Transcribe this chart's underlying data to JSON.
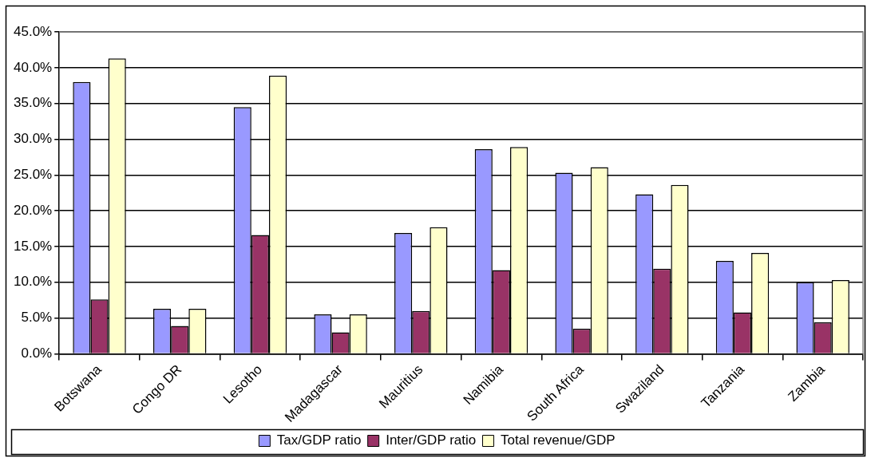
{
  "chart_data": {
    "type": "bar",
    "categories": [
      "Botswana",
      "Congo DR",
      "Lesotho",
      "Madagascar",
      "Mauritius",
      "Namibia",
      "South Africa",
      "Swaziland",
      "Tanzania",
      "Zambia"
    ],
    "series": [
      {
        "name": "Tax/GDP ratio",
        "color": "#9999ff",
        "values": [
          38.0,
          6.3,
          34.5,
          5.5,
          16.9,
          28.6,
          25.3,
          22.3,
          13.0,
          10.0
        ]
      },
      {
        "name": "Inter/GDP ratio",
        "color": "#993366",
        "values": [
          7.6,
          3.9,
          16.6,
          3.0,
          6.0,
          11.7,
          3.5,
          11.9,
          5.8,
          4.4
        ]
      },
      {
        "name": "Total revenue/GDP",
        "color": "#ffffcc",
        "values": [
          41.3,
          6.3,
          38.9,
          5.5,
          17.7,
          28.9,
          26.1,
          23.6,
          14.1,
          10.3
        ]
      }
    ],
    "ylim": [
      0,
      45
    ],
    "yticks": [
      {
        "value": 0,
        "label": "0.0%"
      },
      {
        "value": 5,
        "label": "5.0%"
      },
      {
        "value": 10,
        "label": "10.0%"
      },
      {
        "value": 15,
        "label": "15.0%"
      },
      {
        "value": 20,
        "label": "20.0%"
      },
      {
        "value": 25,
        "label": "25.0%"
      },
      {
        "value": 30,
        "label": "30.0%"
      },
      {
        "value": 35,
        "label": "35.0%"
      },
      {
        "value": 40,
        "label": "40.0%"
      },
      {
        "value": 45,
        "label": "45.0%"
      }
    ],
    "grid": "y",
    "legend": "bottom"
  }
}
